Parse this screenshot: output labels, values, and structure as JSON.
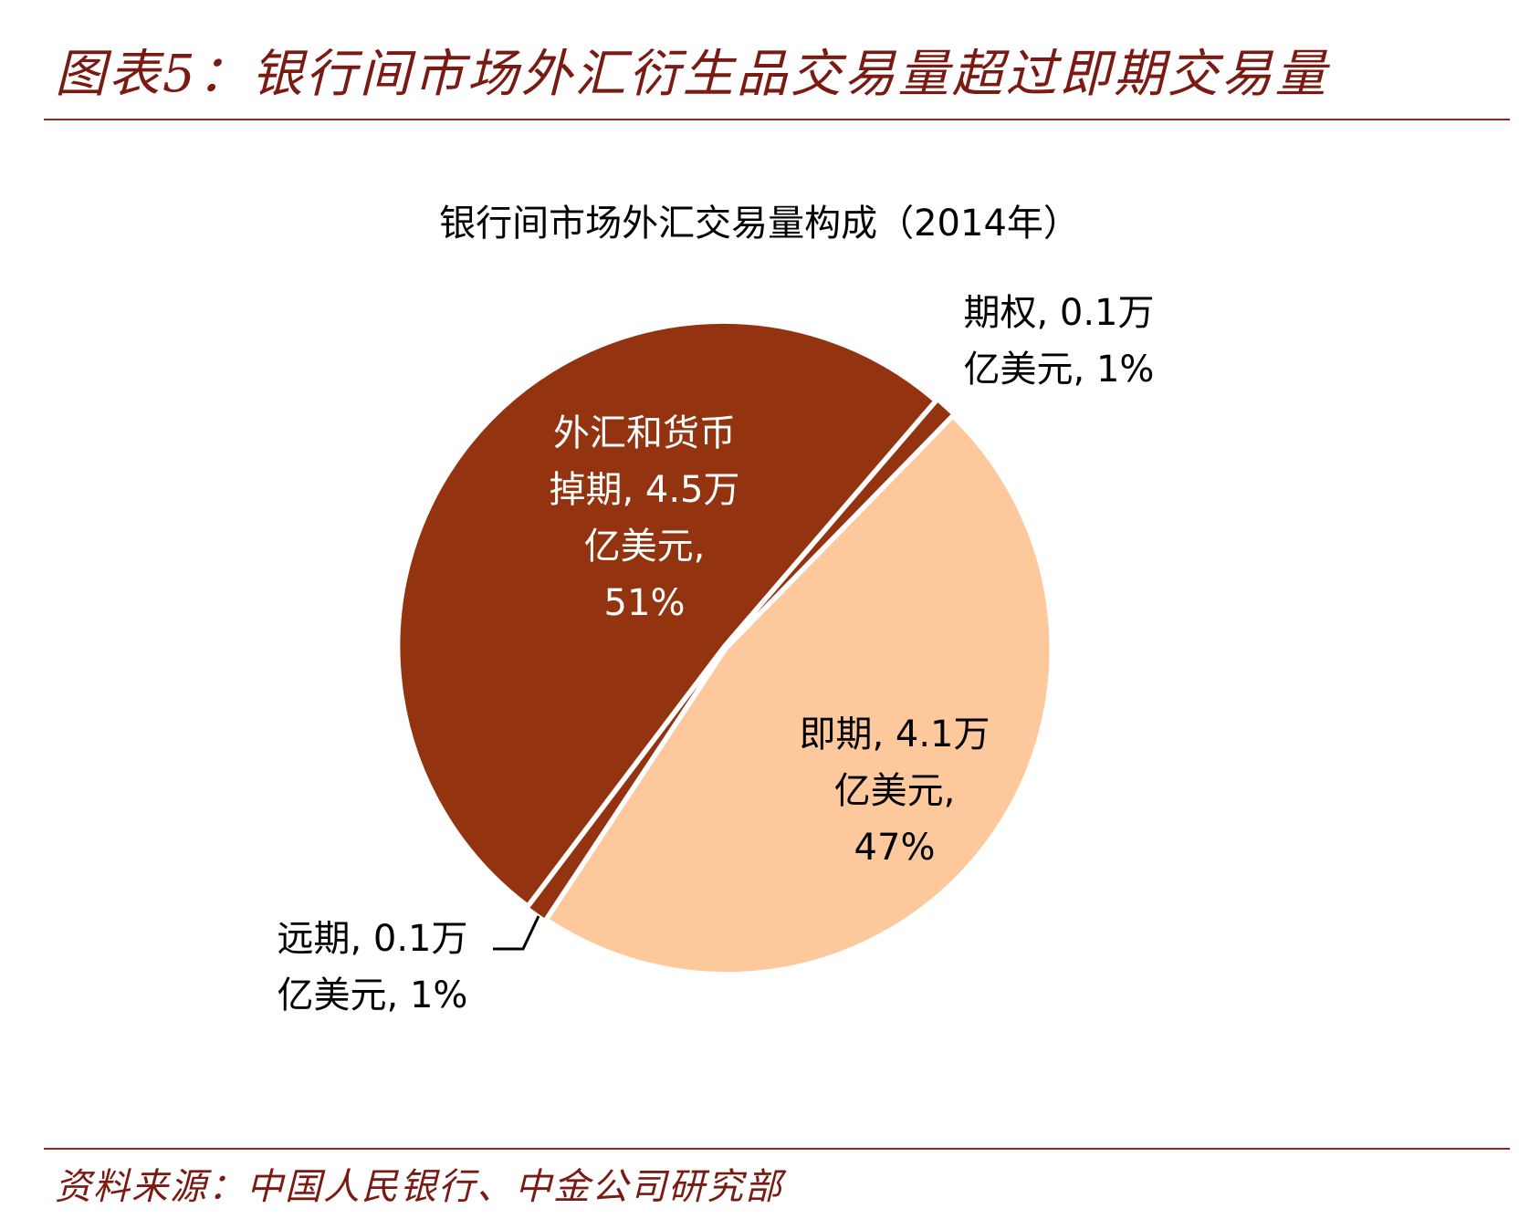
{
  "header": {
    "title": "图表5：银行间市场外汇衍生品交易量超过即期交易量"
  },
  "footer": {
    "source": "资料来源：中国人民银行、中金公司研究部"
  },
  "colors": {
    "accent": "#7a1a12",
    "dark_slice": "#93330f",
    "light_slice": "#fdc99c"
  },
  "chart_data": {
    "type": "pie",
    "title": "银行间市场外汇交易量构成（2014年）",
    "unit": "万亿美元",
    "slices": [
      {
        "name": "期权",
        "value": 0.1,
        "percent": 1,
        "label_lines": [
          "期权, 0.1万",
          "亿美元, 1%"
        ],
        "color": "#93330f"
      },
      {
        "name": "即期",
        "value": 4.1,
        "percent": 47,
        "label_lines": [
          "即期, 4.1万",
          "亿美元,",
          "47%"
        ],
        "color": "#fdc99c"
      },
      {
        "name": "远期",
        "value": 0.1,
        "percent": 1,
        "label_lines": [
          "远期, 0.1万",
          "亿美元, 1%"
        ],
        "color": "#93330f"
      },
      {
        "name": "外汇和货币掉期",
        "value": 4.5,
        "percent": 51,
        "label_lines": [
          "外汇和货币",
          "掉期, 4.5万",
          "亿美元,",
          "51%"
        ],
        "color": "#93330f"
      }
    ]
  }
}
